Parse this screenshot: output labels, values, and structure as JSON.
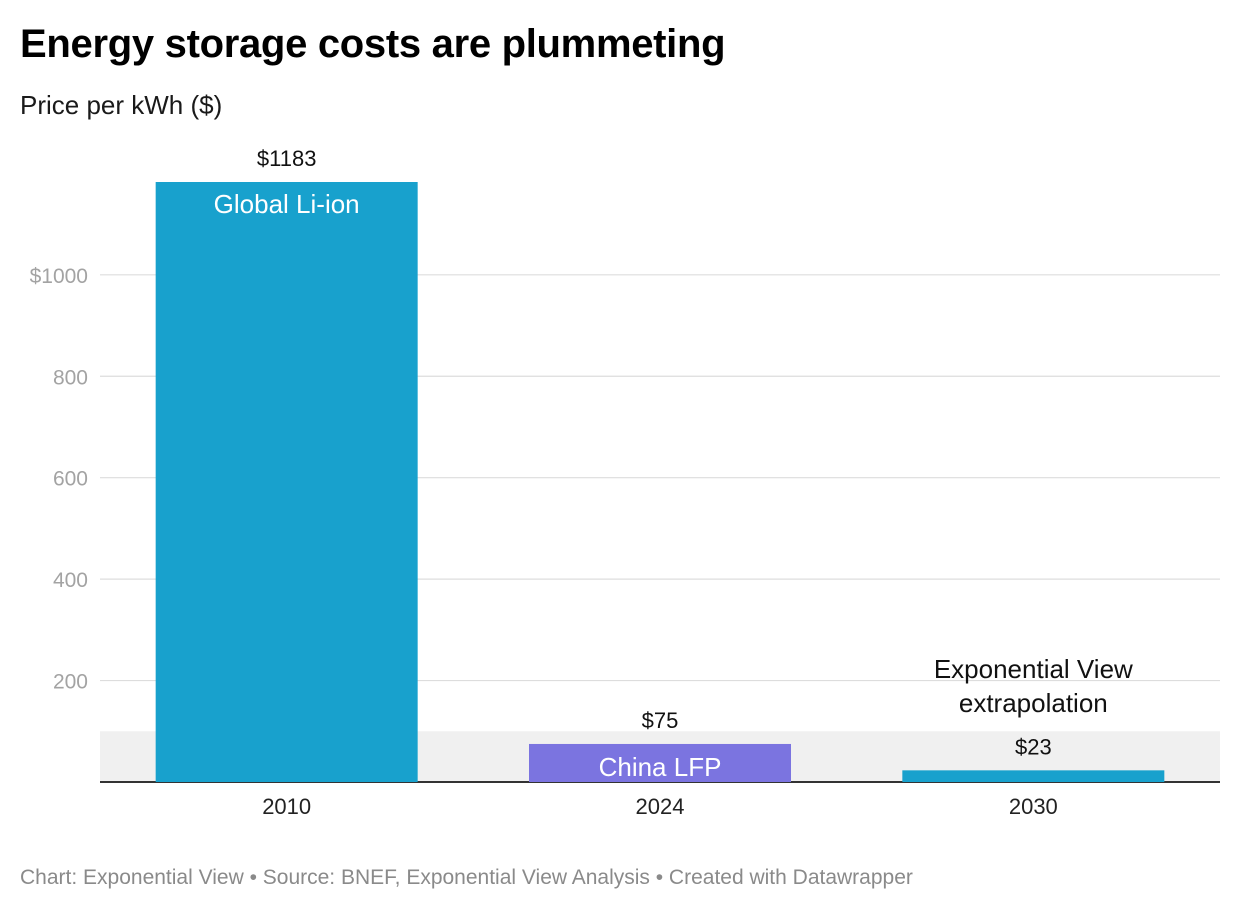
{
  "title": "Energy storage costs are plummeting",
  "subtitle": "Price per kWh ($)",
  "footer": "Chart: Exponential View • Source: BNEF, Exponential View Analysis • Created with Datawrapper",
  "chart_data": {
    "type": "bar",
    "categories": [
      "2010",
      "2024",
      "2030"
    ],
    "values": [
      1183,
      75,
      23
    ],
    "value_labels": [
      "$1183",
      "$75",
      "$23"
    ],
    "bar_labels": [
      "Global Li-ion",
      "China LFP",
      ""
    ],
    "bar_colors": [
      "#18a1cd",
      "#7b74e0",
      "#18a1cd"
    ],
    "bar_label_colors": [
      "#ffffff",
      "#ffffff",
      "#ffffff"
    ],
    "ylim": [
      0,
      1183
    ],
    "y_ticks": [
      200,
      400,
      600,
      800,
      1000
    ],
    "y_tick_labels": [
      "200",
      "400",
      "600",
      "800",
      "$1000"
    ],
    "highlight_band": [
      0,
      100
    ],
    "highlight_band_color": "#f0f0f0",
    "annotation": {
      "category": "2030",
      "lines": [
        "Exponential View",
        "extrapolation"
      ]
    },
    "grid": true,
    "xlabel": "",
    "ylabel": ""
  }
}
